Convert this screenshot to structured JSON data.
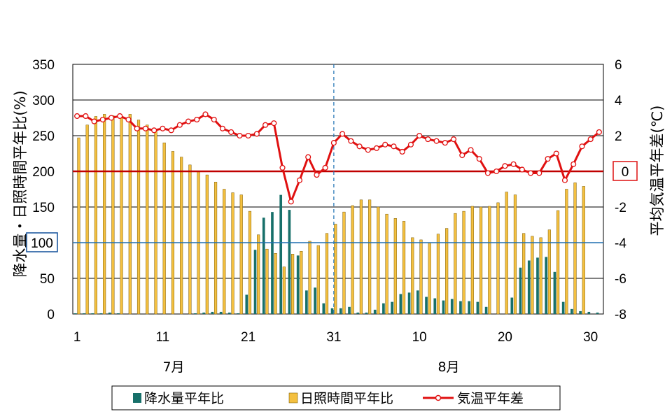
{
  "colors": {
    "precip_bar": "#17706a",
    "sun_bar": "#f4c040",
    "sun_bar_edge": "#7a5a00",
    "temp_line": "#e01010",
    "zero_line": "#c00000",
    "ref100_line": "#1f6fb0",
    "divider": "#2a7ab8",
    "grid": "#000000",
    "box100": "#1f5aa0",
    "box0": "#e02020"
  },
  "chart_data": {
    "type": "bar",
    "x_tick_labels": [
      "1",
      "11",
      "21",
      "31",
      "10",
      "20",
      "30"
    ],
    "month_labels": [
      "7月",
      "8月"
    ],
    "ylabel_left": "降水量・日照時間平年比(%)",
    "ylabel_right": "平均気温平年差(℃)",
    "y_left_ticks": [
      "0",
      "50",
      "100",
      "150",
      "200",
      "250",
      "300",
      "350"
    ],
    "y_right_ticks": [
      "-8",
      "-6",
      "-4",
      "-2",
      "0",
      "2",
      "4",
      "6"
    ],
    "ylim_left": [
      0,
      350
    ],
    "ylim_right": [
      -8,
      6
    ],
    "ref_left_label": "100",
    "ref_right_label": "0",
    "grid": true,
    "legend_position": "bottom",
    "dates": [
      "7/1",
      "7/2",
      "7/3",
      "7/4",
      "7/5",
      "7/6",
      "7/7",
      "7/8",
      "7/9",
      "7/10",
      "7/11",
      "7/12",
      "7/13",
      "7/14",
      "7/15",
      "7/16",
      "7/17",
      "7/18",
      "7/19",
      "7/20",
      "7/21",
      "7/22",
      "7/23",
      "7/24",
      "7/25",
      "7/26",
      "7/27",
      "7/28",
      "7/29",
      "7/30",
      "7/31",
      "8/1",
      "8/2",
      "8/3",
      "8/4",
      "8/5",
      "8/6",
      "8/7",
      "8/8",
      "8/9",
      "8/10",
      "8/11",
      "8/12",
      "8/13",
      "8/14",
      "8/15",
      "8/16",
      "8/17",
      "8/18",
      "8/19",
      "8/20",
      "8/21",
      "8/22",
      "8/23",
      "8/24",
      "8/25",
      "8/26",
      "8/27",
      "8/28",
      "8/29",
      "8/30",
      "8/31"
    ],
    "series": [
      {
        "name": "降水量平年比",
        "kind": "bar",
        "values": [
          1,
          1,
          1,
          1,
          2,
          1,
          0,
          0,
          0,
          0,
          0,
          0,
          0,
          0,
          1,
          2,
          3,
          3,
          2,
          1,
          27,
          90,
          135,
          143,
          167,
          146,
          82,
          33,
          37,
          15,
          8,
          8,
          10,
          2,
          2,
          6,
          15,
          17,
          28,
          30,
          33,
          24,
          22,
          19,
          21,
          18,
          18,
          17,
          10,
          0,
          0,
          23,
          65,
          75,
          79,
          80,
          59,
          17,
          7,
          4,
          3,
          2
        ],
        "y_axis": "left"
      },
      {
        "name": "日照時間平年比",
        "kind": "bar",
        "values": [
          247,
          265,
          277,
          280,
          278,
          276,
          280,
          272,
          265,
          258,
          240,
          228,
          220,
          209,
          200,
          195,
          185,
          175,
          170,
          167,
          144,
          111,
          91,
          85,
          66,
          84,
          88,
          102,
          96,
          113,
          126,
          143,
          152,
          160,
          160,
          150,
          140,
          134,
          130,
          107,
          104,
          100,
          112,
          120,
          141,
          144,
          151,
          150,
          151,
          156,
          171,
          167,
          113,
          109,
          107,
          118,
          145,
          175,
          184,
          179,
          0,
          0
        ],
        "y_axis": "left"
      },
      {
        "name": "気温平年差",
        "kind": "line",
        "values": [
          3.1,
          3.1,
          2.8,
          2.9,
          3.0,
          3.1,
          2.9,
          2.4,
          2.4,
          2.3,
          2.4,
          2.3,
          2.6,
          2.8,
          2.9,
          3.2,
          2.9,
          2.4,
          2.2,
          2.0,
          2.0,
          2.1,
          2.6,
          2.7,
          0.2,
          -1.7,
          -0.5,
          0.8,
          -0.2,
          0.2,
          1.6,
          2.1,
          1.7,
          1.4,
          1.2,
          1.3,
          1.5,
          1.4,
          1.1,
          1.5,
          2.0,
          1.8,
          1.7,
          1.6,
          1.8,
          0.9,
          1.2,
          0.7,
          -0.1,
          0,
          0.3,
          0.4,
          0.1,
          -0.1,
          -0.1,
          0.7,
          1.0,
          -0.5,
          0.4,
          1.4,
          1.8,
          2.2
        ],
        "y_axis": "right"
      }
    ]
  }
}
